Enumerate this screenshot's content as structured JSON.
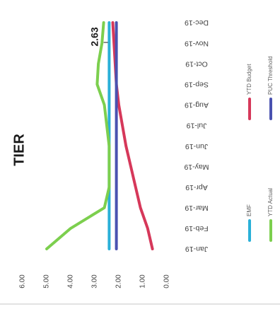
{
  "chart_data": {
    "type": "line",
    "title": "TIER",
    "categories": [
      "Jan-19",
      "Feb-19",
      "Mar-19",
      "Apr-19",
      "May-19",
      "Jun-19",
      "Jul-19",
      "Aug-19",
      "Sep-19",
      "Oct-19",
      "Nov-19",
      "Dec-19"
    ],
    "ylim": [
      0,
      6
    ],
    "yticks": [
      "0.00",
      "1.00",
      "2.00",
      "3.00",
      "4.00",
      "5.00",
      "6.00"
    ],
    "legend_position": "right",
    "series": [
      {
        "name": "EMF",
        "color": "#2ab0d8",
        "values": [
          2.4,
          2.4,
          2.4,
          2.4,
          2.4,
          2.4,
          2.4,
          2.4,
          2.4,
          2.4,
          2.4,
          2.4
        ]
      },
      {
        "name": "YTD Budget",
        "color": "#d6385a",
        "values": [
          0.6,
          0.8,
          1.1,
          1.3,
          1.5,
          1.7,
          1.85,
          2.0,
          2.1,
          2.15,
          2.2,
          2.25
        ]
      },
      {
        "name": "YTD Actual",
        "color": "#7ccf4e",
        "values": [
          5.0,
          4.0,
          2.6,
          2.4,
          2.4,
          2.4,
          2.5,
          2.6,
          2.9,
          2.85,
          2.7,
          2.63
        ]
      },
      {
        "name": "PUC Threshold",
        "color": "#4a52b0",
        "values": [
          2.1,
          2.1,
          2.1,
          2.1,
          2.1,
          2.1,
          2.1,
          2.1,
          2.1,
          2.1,
          2.1,
          2.1
        ]
      }
    ],
    "data_labels": [
      {
        "series": "YTD Actual",
        "category": "Dec-19",
        "text": "2.63"
      }
    ]
  }
}
